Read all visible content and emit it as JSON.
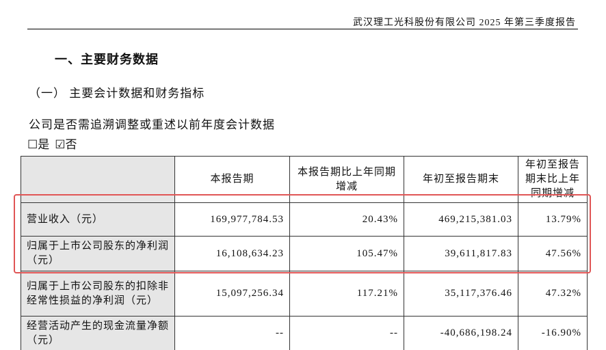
{
  "header": {
    "title": "武汉理工光科股份有限公司 2025 年第三季度报告"
  },
  "section": {
    "title": "一、主要财务数据",
    "subtitle": "（一）  主要会计数据和财务指标"
  },
  "question": {
    "text": "公司是否需追溯调整或重述以前年度会计数据",
    "options": [
      "☐是",
      "☑否"
    ]
  },
  "table": {
    "columns": [
      "",
      "本报告期",
      "本报告期比上年同期增减",
      "年初至报告期末",
      "年初至报告期末比上年同期增减"
    ],
    "rows": [
      [
        "营业收入（元）",
        "169,977,784.53",
        "20.43%",
        "469,215,381.03",
        "13.79%"
      ],
      [
        "归属于上市公司股东的净利润（元）",
        "16,108,634.23",
        "105.47%",
        "39,611,817.83",
        "47.56%"
      ],
      [
        "归属于上市公司股东的扣除非经常性损益的净利润（元）",
        "15,097,256.34",
        "117.21%",
        "35,117,376.46",
        "47.32%"
      ],
      [
        "经营活动产生的现金流量净额（元）",
        "--",
        "--",
        "-40,686,198.24",
        "-16.90%"
      ]
    ]
  }
}
